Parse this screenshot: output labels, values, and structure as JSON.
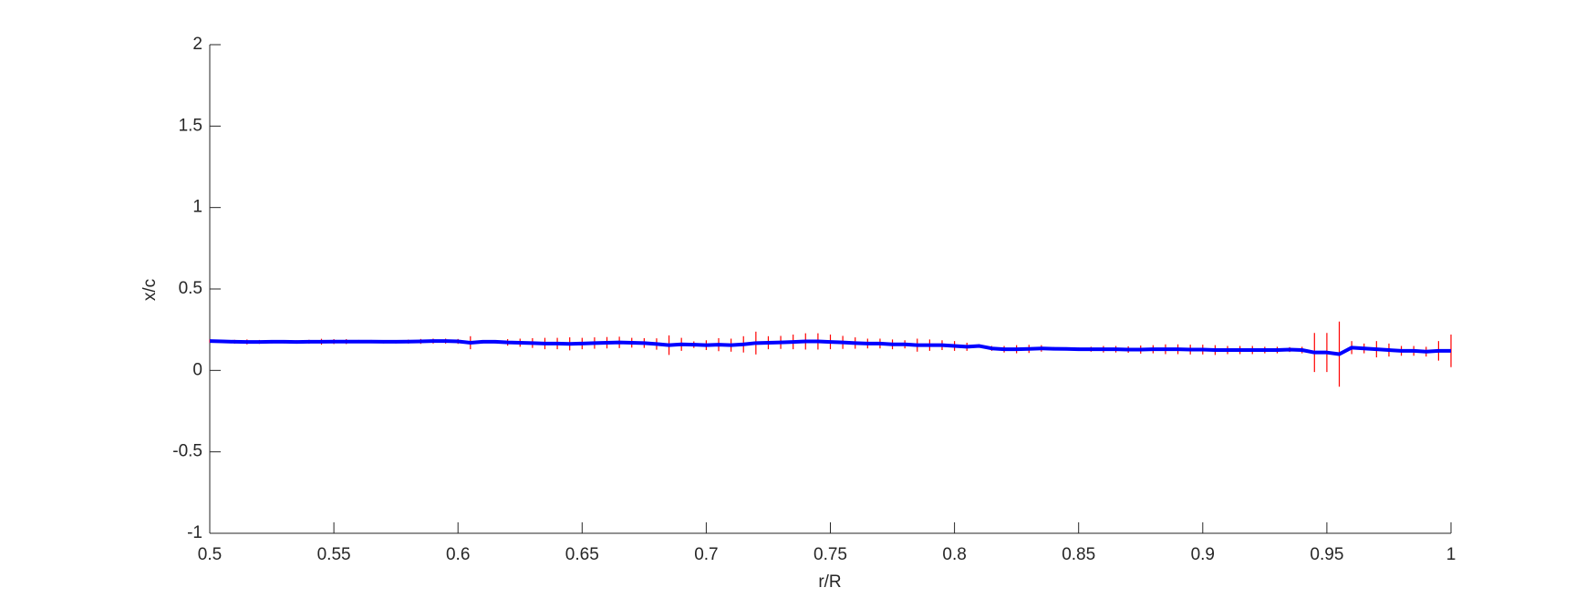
{
  "chart_data": {
    "type": "errorbar",
    "xlabel": "r/R",
    "ylabel": "x/c",
    "xlim": [
      0.5,
      1
    ],
    "ylim": [
      -1,
      2
    ],
    "xticks": [
      0.5,
      0.55,
      0.6,
      0.65,
      0.7,
      0.75,
      0.8,
      0.85,
      0.9,
      0.95,
      1
    ],
    "yticks": [
      -1,
      -0.5,
      0,
      0.5,
      1,
      1.5,
      2
    ],
    "line_color": "#0000ff",
    "error_color": "#ff0000",
    "x": [
      0.5,
      0.505,
      0.51,
      0.515,
      0.52,
      0.525,
      0.53,
      0.535,
      0.54,
      0.545,
      0.55,
      0.555,
      0.56,
      0.565,
      0.57,
      0.575,
      0.58,
      0.585,
      0.59,
      0.595,
      0.6,
      0.605,
      0.61,
      0.615,
      0.62,
      0.625,
      0.63,
      0.635,
      0.64,
      0.645,
      0.65,
      0.655,
      0.66,
      0.665,
      0.67,
      0.675,
      0.68,
      0.685,
      0.69,
      0.695,
      0.7,
      0.705,
      0.71,
      0.715,
      0.72,
      0.725,
      0.73,
      0.735,
      0.74,
      0.745,
      0.75,
      0.755,
      0.76,
      0.765,
      0.77,
      0.775,
      0.78,
      0.785,
      0.79,
      0.795,
      0.8,
      0.805,
      0.81,
      0.815,
      0.82,
      0.825,
      0.83,
      0.835,
      0.84,
      0.845,
      0.85,
      0.855,
      0.86,
      0.865,
      0.87,
      0.875,
      0.88,
      0.885,
      0.89,
      0.895,
      0.9,
      0.905,
      0.91,
      0.915,
      0.92,
      0.925,
      0.93,
      0.935,
      0.94,
      0.945,
      0.95,
      0.955,
      0.96,
      0.965,
      0.97,
      0.975,
      0.98,
      0.985,
      0.99,
      0.995,
      1
    ],
    "values": [
      0.18,
      0.178,
      0.176,
      0.175,
      0.175,
      0.176,
      0.176,
      0.175,
      0.176,
      0.176,
      0.177,
      0.177,
      0.177,
      0.177,
      0.176,
      0.176,
      0.177,
      0.178,
      0.18,
      0.18,
      0.178,
      0.17,
      0.176,
      0.176,
      0.172,
      0.17,
      0.168,
      0.165,
      0.165,
      0.163,
      0.165,
      0.168,
      0.17,
      0.172,
      0.17,
      0.168,
      0.162,
      0.155,
      0.16,
      0.158,
      0.155,
      0.158,
      0.155,
      0.16,
      0.168,
      0.17,
      0.172,
      0.175,
      0.178,
      0.178,
      0.175,
      0.172,
      0.168,
      0.165,
      0.165,
      0.16,
      0.16,
      0.155,
      0.155,
      0.155,
      0.15,
      0.145,
      0.15,
      0.135,
      0.13,
      0.13,
      0.132,
      0.135,
      0.133,
      0.132,
      0.13,
      0.13,
      0.13,
      0.13,
      0.128,
      0.128,
      0.13,
      0.13,
      0.13,
      0.128,
      0.128,
      0.125,
      0.125,
      0.125,
      0.125,
      0.125,
      0.125,
      0.128,
      0.125,
      0.11,
      0.11,
      0.1,
      0.14,
      0.135,
      0.13,
      0.125,
      0.12,
      0.12,
      0.115,
      0.12,
      0.12
    ],
    "errors": [
      0.01,
      0.01,
      0.012,
      0.015,
      0.012,
      0.01,
      0.01,
      0.01,
      0.012,
      0.018,
      0.015,
      0.015,
      0.01,
      0.01,
      0.01,
      0.01,
      0.012,
      0.015,
      0.015,
      0.015,
      0.015,
      0.04,
      0.01,
      0.01,
      0.02,
      0.025,
      0.03,
      0.035,
      0.035,
      0.04,
      0.035,
      0.035,
      0.035,
      0.035,
      0.03,
      0.03,
      0.035,
      0.06,
      0.04,
      0.02,
      0.03,
      0.04,
      0.04,
      0.05,
      0.07,
      0.04,
      0.04,
      0.045,
      0.05,
      0.05,
      0.045,
      0.04,
      0.035,
      0.03,
      0.03,
      0.03,
      0.025,
      0.04,
      0.035,
      0.03,
      0.03,
      0.025,
      0.01,
      0.015,
      0.02,
      0.025,
      0.025,
      0.02,
      0.01,
      0.01,
      0.01,
      0.015,
      0.02,
      0.02,
      0.02,
      0.025,
      0.025,
      0.03,
      0.03,
      0.03,
      0.03,
      0.03,
      0.025,
      0.025,
      0.025,
      0.02,
      0.02,
      0.015,
      0.02,
      0.12,
      0.12,
      0.2,
      0.04,
      0.03,
      0.05,
      0.04,
      0.03,
      0.03,
      0.03,
      0.06,
      0.1
    ]
  }
}
